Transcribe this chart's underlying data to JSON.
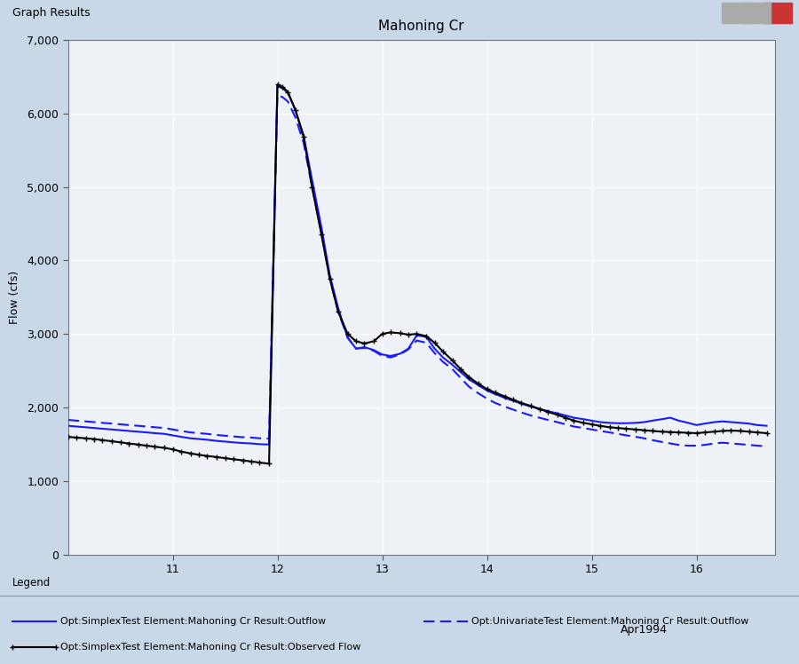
{
  "title": "Mahoning Cr",
  "ylabel": "Flow (cfs)",
  "xlabel_date": "Apr1994",
  "ylim": [
    0,
    7000
  ],
  "yticks": [
    0,
    1000,
    2000,
    3000,
    4000,
    5000,
    6000,
    7000
  ],
  "xtick_labels": [
    "11",
    "12",
    "13",
    "14",
    "15",
    "16"
  ],
  "xtick_positions": [
    11,
    12,
    13,
    14,
    15,
    16
  ],
  "xlim": [
    10.0,
    16.75
  ],
  "bg_color": "#c8d8e8",
  "plot_bg": "#eef2f7",
  "window_title": "Graph Results",
  "legend_title": "Legend",
  "legend_items": [
    {
      "label": "Opt:SimplexTest Element:Mahoning Cr Result:Outflow",
      "color": "#1a1aff",
      "ls": "solid",
      "lw": 1.5,
      "marker": null
    },
    {
      "label": "Opt:UnivariateTest Element:Mahoning Cr Result:Outflow",
      "color": "#1a1aff",
      "ls": "dashed",
      "lw": 1.5,
      "marker": null
    },
    {
      "label": "Opt:SimplexTest Element:Mahoning Cr Result:Observed Flow",
      "color": "#000000",
      "ls": "solid",
      "lw": 1.8,
      "marker": "+"
    }
  ],
  "simplex_outflow_x": [
    10.0,
    10.08,
    10.17,
    10.25,
    10.33,
    10.42,
    10.5,
    10.58,
    10.67,
    10.75,
    10.83,
    10.92,
    11.0,
    11.08,
    11.17,
    11.25,
    11.33,
    11.42,
    11.5,
    11.58,
    11.67,
    11.75,
    11.83,
    11.92,
    12.0,
    12.05,
    12.1,
    12.17,
    12.25,
    12.33,
    12.42,
    12.5,
    12.58,
    12.67,
    12.75,
    12.83,
    12.92,
    13.0,
    13.08,
    13.17,
    13.25,
    13.33,
    13.42,
    13.5,
    13.58,
    13.67,
    13.75,
    13.83,
    13.92,
    14.0,
    14.08,
    14.17,
    14.25,
    14.33,
    14.42,
    14.5,
    14.58,
    14.67,
    14.75,
    14.83,
    14.92,
    15.0,
    15.08,
    15.17,
    15.25,
    15.33,
    15.42,
    15.5,
    15.58,
    15.67,
    15.75,
    15.83,
    15.92,
    16.0,
    16.08,
    16.17,
    16.25,
    16.33,
    16.42,
    16.5,
    16.58,
    16.67
  ],
  "simplex_outflow_y": [
    1750,
    1740,
    1730,
    1720,
    1710,
    1700,
    1690,
    1680,
    1670,
    1660,
    1650,
    1640,
    1620,
    1600,
    1580,
    1570,
    1560,
    1545,
    1535,
    1525,
    1515,
    1510,
    1500,
    1495,
    6370,
    6340,
    6280,
    6050,
    5700,
    5100,
    4450,
    3800,
    3350,
    2950,
    2800,
    2820,
    2780,
    2720,
    2700,
    2730,
    2800,
    2980,
    2960,
    2800,
    2680,
    2580,
    2480,
    2380,
    2300,
    2230,
    2180,
    2130,
    2090,
    2050,
    2010,
    1980,
    1950,
    1920,
    1890,
    1860,
    1840,
    1820,
    1800,
    1790,
    1785,
    1785,
    1790,
    1800,
    1820,
    1840,
    1860,
    1820,
    1790,
    1760,
    1780,
    1800,
    1810,
    1800,
    1790,
    1780,
    1760,
    1750
  ],
  "univariate_outflow_x": [
    10.0,
    10.08,
    10.17,
    10.25,
    10.33,
    10.42,
    10.5,
    10.58,
    10.67,
    10.75,
    10.83,
    10.92,
    11.0,
    11.08,
    11.17,
    11.25,
    11.33,
    11.42,
    11.5,
    11.58,
    11.67,
    11.75,
    11.83,
    11.92,
    12.0,
    12.05,
    12.1,
    12.17,
    12.25,
    12.33,
    12.42,
    12.5,
    12.58,
    12.67,
    12.75,
    12.83,
    12.92,
    13.0,
    13.08,
    13.17,
    13.25,
    13.33,
    13.42,
    13.5,
    13.58,
    13.67,
    13.75,
    13.83,
    13.92,
    14.0,
    14.08,
    14.17,
    14.25,
    14.33,
    14.42,
    14.5,
    14.58,
    14.67,
    14.75,
    14.83,
    14.92,
    15.0,
    15.08,
    15.17,
    15.25,
    15.33,
    15.42,
    15.5,
    15.58,
    15.67,
    15.75,
    15.83,
    15.92,
    16.0,
    16.08,
    16.17,
    16.25,
    16.33,
    16.42,
    16.5,
    16.58,
    16.67
  ],
  "univariate_outflow_y": [
    1830,
    1820,
    1810,
    1800,
    1790,
    1780,
    1770,
    1760,
    1750,
    1740,
    1730,
    1720,
    1700,
    1680,
    1660,
    1650,
    1640,
    1625,
    1615,
    1605,
    1595,
    1590,
    1580,
    1575,
    6250,
    6220,
    6160,
    5950,
    5600,
    5000,
    4380,
    3750,
    3300,
    2950,
    2800,
    2810,
    2770,
    2700,
    2680,
    2720,
    2790,
    2910,
    2880,
    2740,
    2620,
    2520,
    2400,
    2280,
    2190,
    2120,
    2060,
    2010,
    1970,
    1930,
    1890,
    1860,
    1830,
    1800,
    1770,
    1740,
    1720,
    1700,
    1680,
    1660,
    1640,
    1620,
    1600,
    1580,
    1555,
    1530,
    1510,
    1490,
    1480,
    1480,
    1490,
    1510,
    1520,
    1510,
    1500,
    1490,
    1480,
    1470
  ],
  "observed_flow_x": [
    10.0,
    10.08,
    10.17,
    10.25,
    10.33,
    10.42,
    10.5,
    10.58,
    10.67,
    10.75,
    10.83,
    10.92,
    11.0,
    11.08,
    11.17,
    11.25,
    11.33,
    11.42,
    11.5,
    11.58,
    11.67,
    11.75,
    11.83,
    11.92,
    12.0,
    12.05,
    12.1,
    12.17,
    12.25,
    12.33,
    12.42,
    12.5,
    12.58,
    12.67,
    12.75,
    12.83,
    12.92,
    13.0,
    13.08,
    13.17,
    13.25,
    13.33,
    13.42,
    13.5,
    13.58,
    13.67,
    13.75,
    13.83,
    13.92,
    14.0,
    14.08,
    14.17,
    14.25,
    14.33,
    14.42,
    14.5,
    14.58,
    14.67,
    14.75,
    14.83,
    14.92,
    15.0,
    15.08,
    15.17,
    15.25,
    15.33,
    15.42,
    15.5,
    15.58,
    15.67,
    15.75,
    15.83,
    15.92,
    16.0,
    16.08,
    16.17,
    16.25,
    16.33,
    16.42,
    16.5,
    16.58,
    16.67
  ],
  "observed_flow_y": [
    1600,
    1590,
    1580,
    1570,
    1555,
    1540,
    1525,
    1510,
    1495,
    1480,
    1465,
    1450,
    1430,
    1400,
    1375,
    1355,
    1340,
    1325,
    1310,
    1295,
    1280,
    1265,
    1250,
    1235,
    6390,
    6360,
    6290,
    6050,
    5680,
    5000,
    4350,
    3750,
    3300,
    3000,
    2900,
    2870,
    2900,
    3000,
    3020,
    3010,
    2990,
    3000,
    2970,
    2880,
    2760,
    2640,
    2520,
    2410,
    2320,
    2250,
    2200,
    2150,
    2105,
    2060,
    2020,
    1980,
    1940,
    1900,
    1860,
    1820,
    1790,
    1770,
    1750,
    1730,
    1720,
    1710,
    1700,
    1690,
    1680,
    1670,
    1665,
    1660,
    1655,
    1650,
    1660,
    1670,
    1680,
    1685,
    1680,
    1670,
    1660,
    1650
  ]
}
